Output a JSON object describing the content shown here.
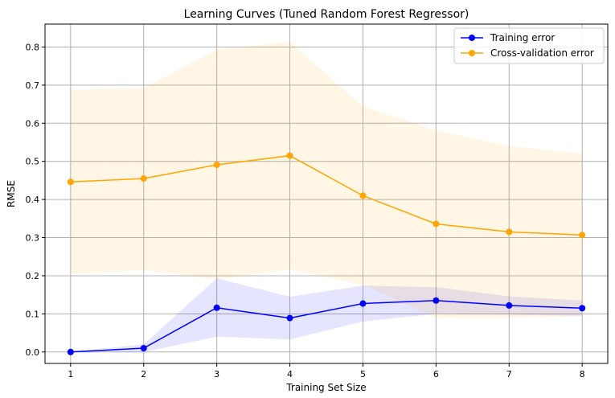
{
  "chart_data": {
    "type": "line",
    "title": "Learning Curves (Tuned Random Forest Regressor)",
    "xlabel": "Training Set Size",
    "ylabel": "RMSE",
    "x": [
      1,
      2,
      3,
      4,
      5,
      6,
      7,
      8
    ],
    "xticks": [
      "1",
      "2",
      "3",
      "4",
      "5",
      "6",
      "7",
      "8"
    ],
    "xlim": [
      0.65,
      8.35
    ],
    "ylim": [
      -0.03,
      0.86
    ],
    "yticks": [
      "0.0",
      "0.1",
      "0.2",
      "0.3",
      "0.4",
      "0.5",
      "0.6",
      "0.7",
      "0.8"
    ],
    "grid": true,
    "legend_position": "top-right",
    "series": [
      {
        "name": "Training error",
        "color": "#0000ff",
        "values": [
          0.0,
          0.01,
          0.116,
          0.089,
          0.127,
          0.135,
          0.122,
          0.115
        ],
        "band_lower": [
          0.0,
          0.0,
          0.04,
          0.033,
          0.08,
          0.1,
          0.098,
          0.095
        ],
        "band_upper": [
          0.0,
          0.02,
          0.193,
          0.145,
          0.174,
          0.17,
          0.146,
          0.135
        ]
      },
      {
        "name": "Cross-validation error",
        "color": "#ffa500",
        "values": [
          0.446,
          0.455,
          0.491,
          0.515,
          0.41,
          0.336,
          0.315,
          0.307
        ],
        "band_lower": [
          0.205,
          0.215,
          0.19,
          0.217,
          0.176,
          0.09,
          0.09,
          0.093
        ],
        "band_upper": [
          0.687,
          0.693,
          0.793,
          0.813,
          0.644,
          0.582,
          0.54,
          0.521
        ]
      }
    ]
  }
}
